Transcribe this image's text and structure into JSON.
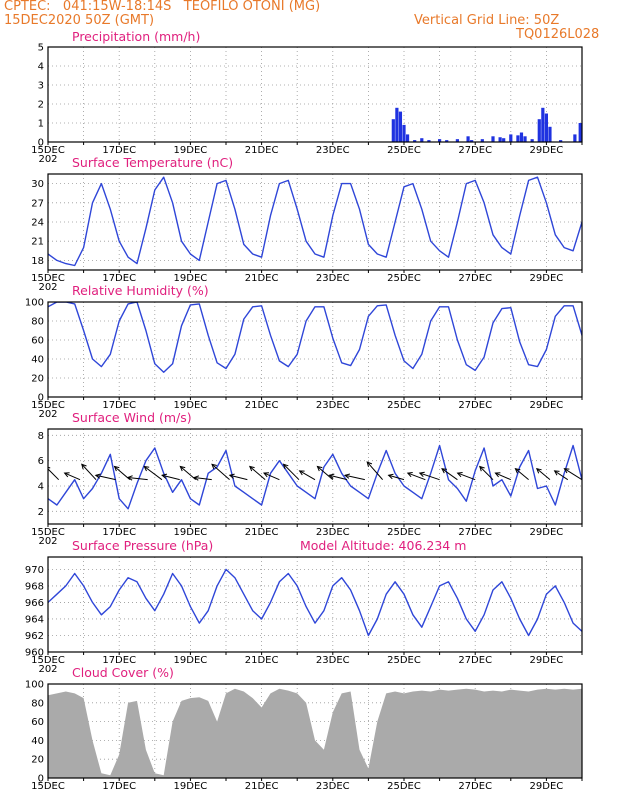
{
  "header": {
    "line1": "CPTEC:   041:15W-18:14S   TEOFILO OTONI (MG)",
    "line2": "15DEC2020 50Z (GMT)",
    "grid_note": "Vertical Grid Line: 50Z",
    "code": "TQ0126L028"
  },
  "x_axis": {
    "labels": [
      "15DEC",
      "17DEC",
      "19DEC",
      "21DEC",
      "23DEC",
      "25DEC",
      "27DEC",
      "29DEC"
    ],
    "year_fragment": "202",
    "days_span": 15
  },
  "colors": {
    "line": "#2f46d8",
    "bar": "#1f32e0",
    "cloud": "#aaaaaa",
    "title": "#e0207e",
    "header": "#e8792a"
  },
  "panels": {
    "precip": {
      "title": "Precipitation (mm/h)",
      "chart_data": {
        "type": "bar",
        "ylim": [
          0,
          5
        ],
        "yticks": [
          0,
          1,
          2,
          3,
          4,
          5
        ],
        "x_unit": "days since 15DEC2020 00Z",
        "values": [
          [
            9.7,
            1.2
          ],
          [
            9.8,
            1.8
          ],
          [
            9.9,
            1.6
          ],
          [
            10.0,
            0.9
          ],
          [
            10.1,
            0.4
          ],
          [
            10.3,
            0.1
          ],
          [
            10.5,
            0.2
          ],
          [
            10.7,
            0.1
          ],
          [
            11.0,
            0.15
          ],
          [
            11.2,
            0.1
          ],
          [
            11.5,
            0.15
          ],
          [
            11.8,
            0.3
          ],
          [
            11.9,
            0.1
          ],
          [
            12.2,
            0.15
          ],
          [
            12.5,
            0.3
          ],
          [
            12.7,
            0.25
          ],
          [
            12.8,
            0.2
          ],
          [
            13.0,
            0.4
          ],
          [
            13.2,
            0.35
          ],
          [
            13.3,
            0.5
          ],
          [
            13.4,
            0.3
          ],
          [
            13.6,
            0.15
          ],
          [
            13.8,
            1.2
          ],
          [
            13.9,
            1.8
          ],
          [
            14.0,
            1.5
          ],
          [
            14.1,
            0.8
          ],
          [
            14.4,
            0.1
          ],
          [
            14.8,
            0.4
          ],
          [
            14.95,
            1.0
          ]
        ]
      }
    },
    "temp": {
      "title": "Surface Temperature (nC)",
      "chart_data": {
        "type": "line",
        "ylim": [
          16.5,
          31.5
        ],
        "yticks": [
          18,
          21,
          24,
          27,
          30
        ],
        "x_unit": "days since 15DEC2020 00Z",
        "x_step": 0.25,
        "values": [
          19,
          18,
          17.5,
          17.2,
          20,
          27,
          30,
          26,
          21,
          18.5,
          17.5,
          23,
          29,
          31,
          27,
          21,
          19,
          18,
          24,
          30,
          30.5,
          26,
          20.5,
          19,
          18.5,
          25,
          30,
          30.5,
          26,
          21,
          19,
          18.5,
          25,
          30,
          30,
          26,
          20.5,
          19,
          18.5,
          24,
          29.5,
          30,
          26,
          21,
          19.5,
          18.5,
          24,
          30,
          30.5,
          27,
          22,
          20,
          19,
          25,
          30.5,
          31,
          27,
          22,
          20,
          19.5,
          24,
          30,
          30.5,
          27,
          22,
          20,
          19.5,
          23,
          28,
          29.5,
          26,
          22,
          20.5,
          20,
          23,
          28,
          28.5,
          26,
          22.5,
          21,
          20.5,
          23,
          27.5,
          28,
          25,
          22,
          21,
          20.5,
          22,
          27,
          27.5,
          25,
          22.5,
          21.5,
          21,
          23,
          27,
          27.5,
          25,
          22.5,
          21.5,
          21,
          23,
          26.5,
          27,
          25,
          22.5,
          21,
          20.5,
          24,
          28.5,
          29,
          26,
          22.5,
          21.5,
          21,
          24,
          28,
          29.5,
          27,
          24
        ]
      }
    },
    "rh": {
      "title": "Relative Humidity (%)",
      "chart_data": {
        "type": "line",
        "ylim": [
          0,
          100
        ],
        "yticks": [
          0,
          20,
          40,
          60,
          80,
          100
        ],
        "x_unit": "days since 15DEC2020 00Z",
        "x_step": 0.25,
        "values": [
          95,
          100,
          100,
          98,
          70,
          40,
          32,
          45,
          80,
          98,
          100,
          70,
          35,
          26,
          35,
          75,
          97,
          98,
          65,
          36,
          30,
          45,
          82,
          95,
          96,
          65,
          38,
          32,
          45,
          80,
          95,
          95,
          62,
          36,
          33,
          50,
          85,
          96,
          97,
          65,
          38,
          30,
          45,
          80,
          95,
          95,
          60,
          34,
          28,
          42,
          78,
          93,
          94,
          58,
          34,
          32,
          50,
          85,
          96,
          96,
          65,
          40,
          35,
          58,
          88,
          97,
          97,
          70,
          48,
          45,
          62,
          88,
          96,
          97,
          78,
          78,
          82,
          88,
          95,
          97,
          80,
          55,
          50,
          65,
          90,
          97,
          95,
          70,
          45,
          42,
          60,
          85,
          95,
          96,
          72,
          50,
          48,
          65,
          90,
          98,
          97,
          75,
          55,
          52,
          70,
          92,
          98,
          99,
          80,
          55,
          50,
          72,
          95,
          99,
          98,
          75,
          45,
          42,
          70,
          66
        ]
      }
    },
    "wind": {
      "title": "Surface Wind (m/s)",
      "chart_data": {
        "type": "line",
        "ylim": [
          1,
          8.5
        ],
        "yticks": [
          2,
          4,
          6,
          8
        ],
        "x_unit": "days since 15DEC2020 00Z",
        "x_step": 0.25,
        "values": [
          3,
          2.5,
          3.5,
          4.5,
          3,
          3.8,
          5,
          6.5,
          3,
          2.2,
          4.2,
          6,
          7,
          5,
          3.5,
          4.5,
          3,
          2.5,
          5,
          5.5,
          6.8,
          4,
          3.5,
          3,
          2.5,
          5,
          6,
          5,
          4,
          3.5,
          3,
          5.5,
          6.5,
          5,
          4,
          3.5,
          3,
          5,
          6.8,
          5,
          4,
          3.5,
          3,
          5,
          7.2,
          4.5,
          3.8,
          2.8,
          5.2,
          7,
          4,
          4.5,
          3.2,
          5.5,
          6.8,
          3.8,
          4,
          2.5,
          5,
          7.2,
          4.5,
          3.5,
          2.8,
          5.5,
          6.5,
          4,
          3.5,
          2.5,
          4.5,
          6.2,
          5,
          3.8,
          3.5,
          4.5,
          6.8,
          4.5,
          3.5,
          3,
          4.5,
          6.5,
          5,
          4,
          3.2,
          4,
          6.2,
          5,
          3.5,
          3.2,
          4.5,
          6,
          5,
          4,
          3,
          4.5,
          5.5,
          4.8,
          3.5,
          3.5,
          4.5,
          5.8,
          4.5,
          4,
          3.5,
          4.5,
          5.5,
          4.5,
          3.5,
          3.8,
          4.8,
          5.8,
          4.5,
          4,
          4.2,
          4.8,
          5.5,
          4,
          3.5,
          4,
          5,
          3.5,
          4.5
        ],
        "vectors": {
          "x": [
            0.3,
            0.9,
            1.35,
            1.9,
            2.3,
            2.8,
            3.2,
            3.7,
            4.15,
            4.6,
            5.1,
            5.6,
            6.1,
            6.5,
            7.05,
            7.5,
            8.0,
            8.4,
            8.9,
            9.4,
            10.0,
            10.6,
            11.0,
            11.5,
            12.0,
            12.5,
            13.0,
            13.5,
            14.1,
            14.6,
            15.0
          ],
          "u": [
            -1.2,
            -1.4,
            -1.3,
            -1.8,
            -1.4,
            -1.8,
            -1.6,
            -1.6,
            -1.4,
            -1.6,
            -1.6,
            -1.6,
            -1.4,
            -1.4,
            -1.4,
            -1.4,
            -1.4,
            -1.6,
            -1.8,
            -1.4,
            -1.4,
            -1.6,
            -1.8,
            -1.4,
            -1.6,
            -1.2,
            -1.4,
            -1.2,
            -1.2,
            -1.2,
            -1.6
          ],
          "v": [
            -1.2,
            -0.6,
            -1.4,
            -0.4,
            -1.2,
            -0.2,
            -1.2,
            -0.4,
            -1.2,
            -0.2,
            -1.4,
            -0.4,
            -1.2,
            -0.6,
            -1.4,
            -0.8,
            -1.2,
            -0.4,
            -0.4,
            -1.6,
            -0.4,
            -0.6,
            -0.6,
            -1.0,
            -0.6,
            -1.2,
            -0.6,
            -1.0,
            -1.0,
            -0.8,
            -1.0
          ]
        }
      }
    },
    "pres": {
      "title": "Surface Pressure (hPa)",
      "altitude": "Model Altitude: 406.234 m",
      "chart_data": {
        "type": "line",
        "ylim": [
          960,
          971.5
        ],
        "yticks": [
          960,
          962,
          964,
          966,
          968,
          970
        ],
        "x_unit": "days since 15DEC2020 00Z",
        "x_step": 0.25,
        "values": [
          966,
          967,
          968,
          969.5,
          968,
          966,
          964.5,
          965.5,
          967.5,
          969,
          968.5,
          966.5,
          965,
          967,
          969.5,
          968,
          965.5,
          963.5,
          965,
          968,
          970,
          969,
          967,
          965,
          964,
          966,
          968.5,
          969.5,
          968,
          965.5,
          963.5,
          965,
          968,
          969,
          967.5,
          965,
          962,
          964,
          967,
          968.5,
          967,
          964.5,
          963,
          965.5,
          968,
          968.5,
          966.5,
          964,
          962.5,
          964.5,
          967.5,
          968.5,
          966.5,
          964,
          962,
          964,
          967,
          968,
          966,
          963.5,
          962.5,
          964.5,
          967,
          967.5,
          965.5,
          963,
          962,
          964,
          967,
          967.5,
          965.5,
          963,
          961.5,
          964,
          966,
          966.5,
          964.5,
          962.5,
          961.5,
          963.5,
          966.5,
          967,
          965,
          962.5,
          961.5,
          963.5,
          966.5,
          967.5,
          965.5,
          963,
          962,
          964.5,
          967.5,
          968.5,
          966.5,
          964,
          963,
          965.5,
          968.5,
          968.5,
          966.5,
          964,
          963,
          965.5,
          968.5,
          969,
          967,
          964.5,
          963,
          965.5,
          969.5,
          970,
          967,
          964,
          962.5,
          965.5,
          969.5,
          970.5,
          967.5,
          964.5,
          968
        ]
      }
    },
    "cloud": {
      "title": "Cloud Cover (%)",
      "chart_data": {
        "type": "area",
        "ylim": [
          0,
          100
        ],
        "yticks": [
          0,
          20,
          40,
          60,
          80,
          100
        ],
        "x_unit": "days since 15DEC2020 00Z",
        "x_step": 0.25,
        "values": [
          88,
          90,
          92,
          90,
          85,
          40,
          5,
          3,
          25,
          80,
          82,
          30,
          5,
          3,
          60,
          82,
          85,
          86,
          82,
          60,
          90,
          95,
          92,
          85,
          75,
          90,
          95,
          93,
          90,
          80,
          40,
          30,
          70,
          90,
          92,
          30,
          10,
          60,
          90,
          92,
          90,
          92,
          93,
          92,
          94,
          93,
          94,
          95,
          94,
          92,
          93,
          92,
          94,
          93,
          92,
          94,
          95,
          94,
          95,
          94,
          95,
          94,
          95,
          96,
          95,
          96,
          97,
          97,
          96,
          97,
          98,
          97,
          97,
          98,
          97,
          98,
          98,
          97,
          98,
          97,
          98,
          98,
          97,
          98,
          98,
          97,
          96,
          97,
          98,
          97,
          96,
          97,
          98,
          97,
          96,
          95,
          96,
          97,
          96,
          95,
          94,
          95,
          96,
          97,
          96,
          95,
          94,
          95,
          96,
          97,
          96,
          95,
          94,
          96,
          97,
          96,
          95,
          94,
          95,
          96,
          95
        ]
      }
    }
  }
}
